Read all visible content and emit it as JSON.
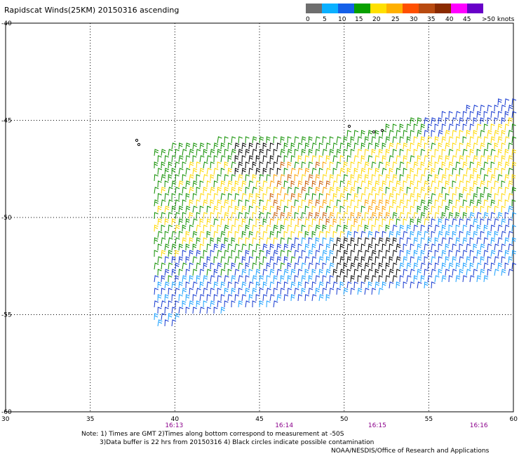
{
  "title": "Rapidscat Winds(25KM) 20150316 ascending",
  "legend": {
    "ticks": [
      "0",
      "5",
      "10",
      "15",
      "20",
      "25",
      "30",
      "35",
      "40",
      "45",
      ">50 knots"
    ],
    "colors": [
      "#6e6e6e",
      "#0ab0ff",
      "#1560e8",
      "#08a000",
      "#ffe000",
      "#ffb000",
      "#ff5000",
      "#b84a10",
      "#8a2a00",
      "#ff00ff",
      "#6800c8"
    ]
  },
  "axes": {
    "x_ticks": [
      "30",
      "35",
      "40",
      "45",
      "50",
      "55",
      "60"
    ],
    "y_ticks": [
      "-40",
      "-45",
      "-50",
      "-55",
      "-60"
    ],
    "time_labels": [
      "16:13",
      "16:14",
      "16:15",
      "16:16"
    ],
    "time_color": "#8b008b"
  },
  "notes": {
    "line1": "Note: 1) Times are GMT 2)Times along bottom correspond to measurement at -50S",
    "line2": "3)Data buffer is 22 hrs from 20150316 4) Black circles indicate possible contamination"
  },
  "credit": "NOAA/NESDIS/Office of Research and Applications",
  "wind_colors": {
    "blue": "#1438d0",
    "lightblue": "#1aa0ff",
    "green": "#109000",
    "yellow": "#ffd800",
    "orange": "#ffa000",
    "darkorange": "#c85a00",
    "black": "#000000"
  }
}
